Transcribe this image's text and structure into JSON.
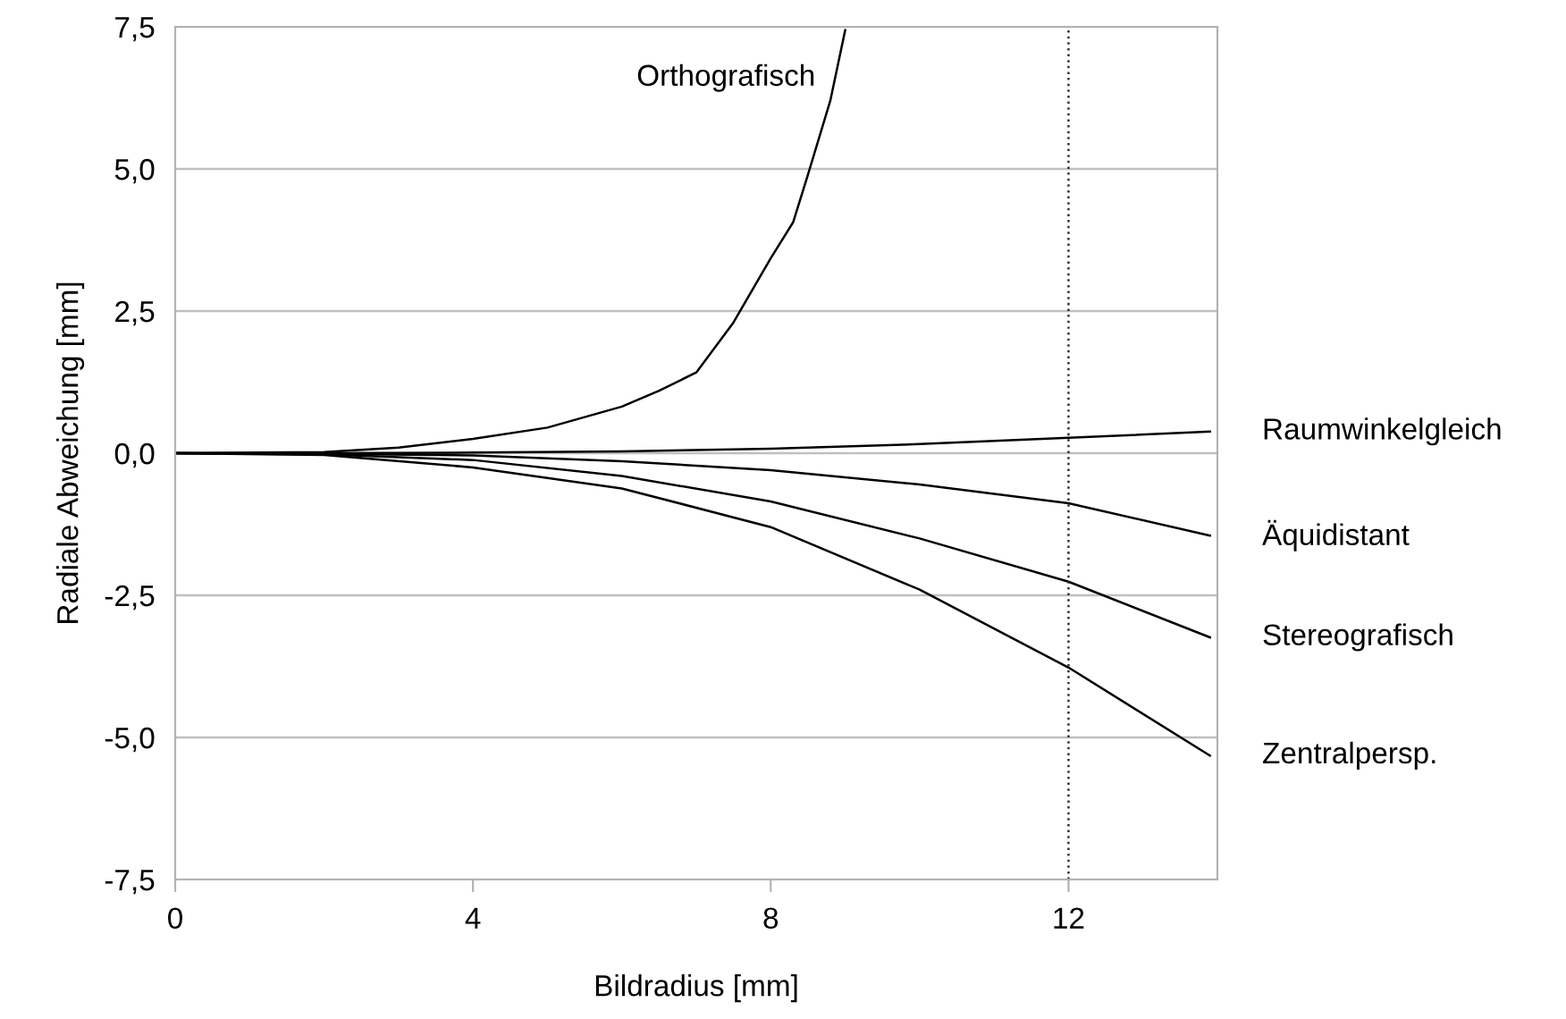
{
  "chart_data": {
    "type": "line",
    "xlabel": "Bildradius [mm]",
    "ylabel": "Radiale Abweichung [mm]",
    "xlim": [
      0,
      14
    ],
    "xticks": [
      0,
      4,
      8,
      12
    ],
    "ylim": [
      -7.5,
      7.5
    ],
    "yticks": [
      {
        "value": -7.5,
        "label": "-7,5"
      },
      {
        "value": -5,
        "label": "-5,0"
      },
      {
        "value": -2.5,
        "label": "-2,5"
      },
      {
        "value": 0,
        "label": "0,0"
      },
      {
        "value": 2.5,
        "label": "2,5"
      },
      {
        "value": 5,
        "label": "5,0"
      },
      {
        "value": 7.5,
        "label": "7,5"
      }
    ],
    "grid": "y",
    "legend": false,
    "marker": "none",
    "line_style": "solid",
    "ref_lines": [
      {
        "axis": "x",
        "value": 12,
        "color": "#333333",
        "line_style": "dotted"
      }
    ],
    "series": [
      {
        "name": "Orthografisch",
        "color": "#000000",
        "x": [
          0,
          2,
          3,
          4,
          5,
          6,
          6.5,
          7,
          7.5,
          8,
          8.3,
          8.5,
          8.8,
          9.0
        ],
        "values": [
          0,
          0.02,
          0.1,
          0.25,
          0.45,
          0.82,
          1.1,
          1.42,
          2.3,
          3.43,
          4.06,
          4.9,
          6.2,
          7.44
        ]
      },
      {
        "name": "Raumwinkelgleich",
        "color": "#000000",
        "x": [
          0,
          2,
          4,
          6,
          8,
          10,
          12,
          13.9
        ],
        "values": [
          0,
          0,
          0.01,
          0.03,
          0.08,
          0.16,
          0.27,
          0.38
        ]
      },
      {
        "name": "Äquidistant",
        "color": "#000000",
        "x": [
          0,
          2,
          4,
          6,
          8,
          10,
          12,
          13.9
        ],
        "values": [
          0,
          -0.01,
          -0.04,
          -0.14,
          -0.3,
          -0.55,
          -0.88,
          -1.45
        ]
      },
      {
        "name": "Stereografisch",
        "color": "#000000",
        "x": [
          0,
          2,
          4,
          6,
          8,
          10,
          12,
          13.9
        ],
        "values": [
          0,
          -0.02,
          -0.12,
          -0.4,
          -0.85,
          -1.5,
          -2.26,
          -3.24
        ]
      },
      {
        "name": "Zentralpersp.",
        "color": "#000000",
        "x": [
          0,
          2,
          4,
          6,
          8,
          10,
          12,
          13.9
        ],
        "values": [
          0,
          -0.03,
          -0.25,
          -0.62,
          -1.3,
          -2.4,
          -3.77,
          -5.32
        ]
      }
    ]
  }
}
